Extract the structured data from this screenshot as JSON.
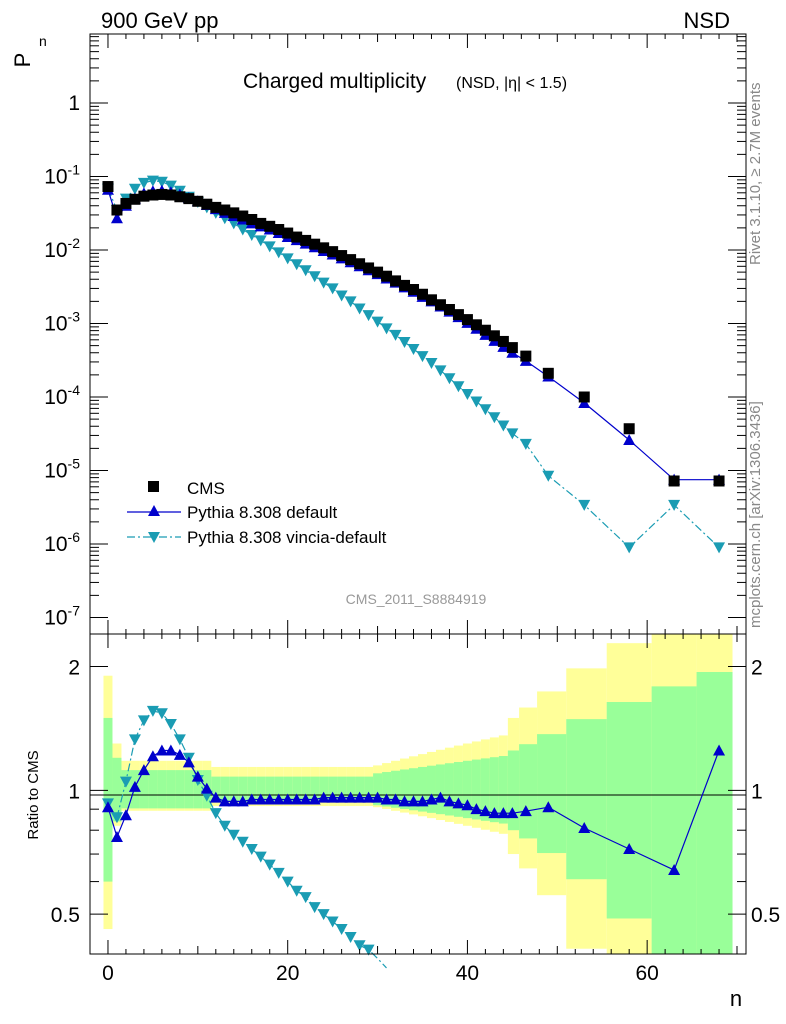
{
  "header": {
    "left": "900 GeV pp",
    "right": "NSD"
  },
  "side_text": {
    "rivet": "Rivet 3.1.10, ≥ 2.7M events",
    "mcplots": "mcplots.cern.ch [arXiv:1306.3436]"
  },
  "colors": {
    "data": "#000000",
    "pythia_default": "#0000cc",
    "pythia_vincia": "#1a9cb3",
    "band_inner": "#99ff99",
    "band_outer": "#ffff99"
  },
  "chart_data": [
    {
      "type": "scatter",
      "title": "Charged multiplicity",
      "subtitle": "(NSD, |η| < 1.5)",
      "ylabel": "P",
      "ylabel_sub": "n",
      "watermark": "CMS_2011_S8884919",
      "yscale": "log",
      "ylim": [
        1e-07,
        10
      ],
      "xlim": [
        -2,
        71
      ],
      "ytick_labels": [
        "1",
        "10^-1",
        "10^-2",
        "10^-3",
        "10^-4",
        "10^-5",
        "10^-6",
        "10^-7"
      ],
      "legend_position": "bottom-left",
      "series": [
        {
          "name": "CMS",
          "style": "markers-square",
          "x": [
            0,
            1,
            2,
            3,
            4,
            5,
            6,
            7,
            8,
            9,
            10,
            11,
            12,
            13,
            14,
            15,
            16,
            17,
            18,
            19,
            20,
            21,
            22,
            23,
            24,
            25,
            26,
            27,
            28,
            29,
            30,
            31,
            32,
            33,
            34,
            35,
            36,
            37,
            38,
            39,
            40,
            41,
            42,
            43,
            44,
            45,
            46.5,
            49,
            53,
            58,
            63,
            68
          ],
          "y": [
            0.073,
            0.035,
            0.043,
            0.049,
            0.054,
            0.056,
            0.057,
            0.056,
            0.053,
            0.05,
            0.046,
            0.042,
            0.038,
            0.035,
            0.032,
            0.029,
            0.026,
            0.023,
            0.021,
            0.019,
            0.017,
            0.015,
            0.0135,
            0.012,
            0.0107,
            0.0095,
            0.0084,
            0.0074,
            0.0065,
            0.0057,
            0.005,
            0.0044,
            0.0038,
            0.0033,
            0.0029,
            0.0025,
            0.0021,
            0.0018,
            0.00155,
            0.00132,
            0.00113,
            0.00096,
            0.00081,
            0.00068,
            0.00057,
            0.00047,
            0.00036,
            0.00021,
            0.0001,
            3.7e-05,
            7.2e-06,
            7.2e-06
          ]
        },
        {
          "name": "Pythia 8.308 default",
          "style": "line-triangle-up",
          "x": [
            0,
            1,
            2,
            3,
            4,
            5,
            6,
            7,
            8,
            9,
            10,
            11,
            12,
            13,
            14,
            15,
            16,
            17,
            18,
            19,
            20,
            21,
            22,
            23,
            24,
            25,
            26,
            27,
            28,
            29,
            30,
            31,
            32,
            33,
            34,
            35,
            36,
            37,
            38,
            39,
            40,
            41,
            42,
            43,
            44,
            45,
            46.5,
            49,
            53,
            58,
            63,
            68
          ],
          "y": [
            0.066,
            0.027,
            0.04,
            0.05,
            0.059,
            0.063,
            0.064,
            0.061,
            0.057,
            0.051,
            0.046,
            0.041,
            0.036,
            0.032,
            0.029,
            0.026,
            0.023,
            0.021,
            0.019,
            0.017,
            0.015,
            0.0136,
            0.0122,
            0.0109,
            0.0097,
            0.0087,
            0.0077,
            0.0068,
            0.006,
            0.0053,
            0.0047,
            0.0041,
            0.0036,
            0.0031,
            0.0027,
            0.0023,
            0.002,
            0.0017,
            0.00145,
            0.00122,
            0.00102,
            0.00085,
            0.0007,
            0.00058,
            0.00048,
            0.0004,
            0.00031,
            0.00019,
            8.3e-05,
            2.6e-05,
            7.5e-06,
            7.5e-06
          ]
        },
        {
          "name": "Pythia 8.308 vincia-default",
          "style": "dashdot-triangle-down",
          "x": [
            0,
            1,
            2,
            3,
            4,
            5,
            6,
            7,
            8,
            9,
            10,
            11,
            12,
            13,
            14,
            15,
            16,
            17,
            18,
            19,
            20,
            21,
            22,
            23,
            24,
            25,
            26,
            27,
            28,
            29,
            30,
            31,
            32,
            33,
            34,
            35,
            36,
            37,
            38,
            39,
            40,
            41,
            42,
            43,
            44,
            45,
            46.5,
            49,
            53,
            58,
            63,
            68
          ],
          "y": [
            0.068,
            0.035,
            0.05,
            0.068,
            0.082,
            0.088,
            0.085,
            0.075,
            0.064,
            0.053,
            0.045,
            0.038,
            0.032,
            0.027,
            0.023,
            0.019,
            0.016,
            0.0135,
            0.0112,
            0.0093,
            0.0077,
            0.0064,
            0.0053,
            0.0044,
            0.0036,
            0.003,
            0.0024,
            0.002,
            0.0016,
            0.0013,
            0.00106,
            0.00086,
            0.0007,
            0.00056,
            0.00045,
            0.00036,
            0.00029,
            0.00023,
            0.00018,
            0.00014,
            0.00011,
            8.7e-05,
            6.8e-05,
            5.3e-05,
            4.1e-05,
            3.2e-05,
            2.3e-05,
            8.5e-06,
            3.4e-06,
            9e-07,
            3.4e-06,
            9e-07
          ]
        }
      ]
    },
    {
      "type": "scatter",
      "ylabel": "Ratio to CMS",
      "xlabel": "n",
      "ylim": [
        0.4,
        2.4
      ],
      "xlim": [
        -2,
        71
      ],
      "xticks": [
        0,
        20,
        40,
        60
      ],
      "yticks": [
        0.5,
        1,
        2
      ],
      "series": [
        {
          "name": "Pythia 8.308 default",
          "x": [
            0,
            1,
            2,
            3,
            4,
            5,
            6,
            7,
            8,
            9,
            10,
            11,
            12,
            13,
            14,
            15,
            16,
            17,
            18,
            19,
            20,
            21,
            22,
            23,
            24,
            25,
            26,
            27,
            28,
            29,
            30,
            31,
            32,
            33,
            34,
            35,
            36,
            37,
            38,
            39,
            40,
            41,
            42,
            43,
            44,
            45,
            46.5,
            49,
            53,
            58,
            63,
            68
          ],
          "y": [
            0.91,
            0.77,
            0.87,
            1.02,
            1.12,
            1.21,
            1.25,
            1.25,
            1.22,
            1.17,
            1.08,
            1.01,
            0.96,
            0.94,
            0.94,
            0.94,
            0.95,
            0.95,
            0.95,
            0.95,
            0.95,
            0.95,
            0.95,
            0.95,
            0.96,
            0.96,
            0.96,
            0.96,
            0.96,
            0.96,
            0.96,
            0.95,
            0.95,
            0.94,
            0.94,
            0.94,
            0.95,
            0.96,
            0.94,
            0.93,
            0.92,
            0.9,
            0.89,
            0.88,
            0.88,
            0.88,
            0.89,
            0.91,
            0.81,
            0.72,
            0.64,
            1.25
          ]
        },
        {
          "name": "Pythia 8.308 vincia-default",
          "x": [
            0,
            1,
            2,
            3,
            4,
            5,
            6,
            7,
            8,
            9,
            10,
            11,
            12,
            13,
            14,
            15,
            16,
            17,
            18,
            19,
            20,
            21,
            22,
            23,
            24,
            25,
            26,
            27,
            28,
            29,
            30,
            31
          ],
          "y": [
            0.93,
            0.86,
            1.05,
            1.33,
            1.48,
            1.56,
            1.54,
            1.45,
            1.33,
            1.2,
            1.06,
            0.97,
            0.88,
            0.82,
            0.78,
            0.75,
            0.72,
            0.69,
            0.66,
            0.63,
            0.6,
            0.57,
            0.55,
            0.52,
            0.5,
            0.48,
            0.46,
            0.44,
            0.42,
            0.41,
            0.39,
            0.37
          ]
        }
      ]
    }
  ]
}
